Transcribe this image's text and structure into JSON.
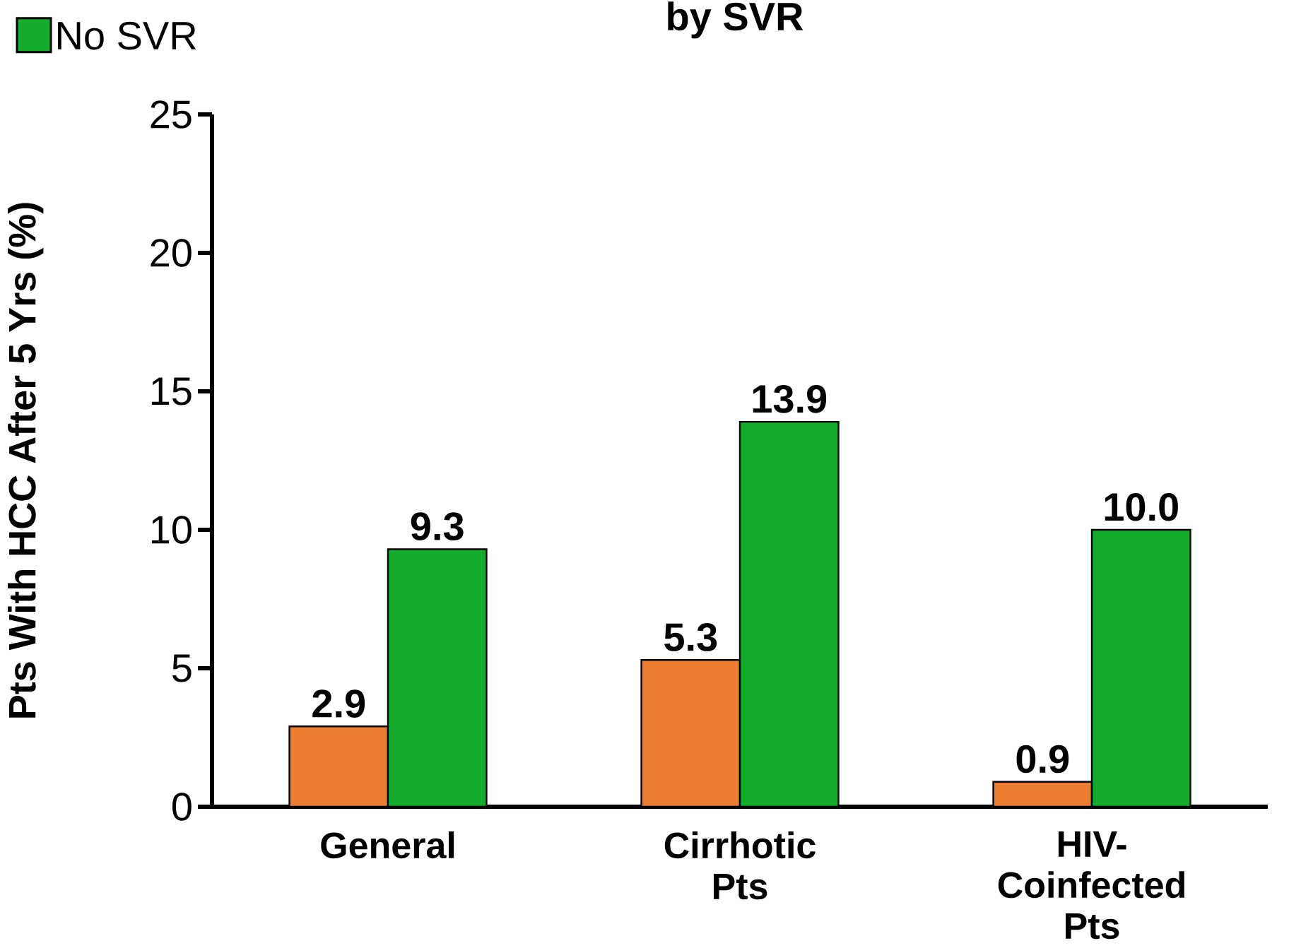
{
  "chart_data": {
    "type": "bar",
    "title": "by SVR",
    "ylabel": "Pts With HCC After 5 Yrs (%)",
    "categories": [
      "General",
      "Cirrhotic Pts",
      "HIV-Coinfected Pts"
    ],
    "series": [
      {
        "color": "#ED7D31",
        "values": [
          2.9,
          5.3,
          0.9
        ],
        "value_labels": [
          "2.9",
          "5.3",
          "0.9"
        ]
      },
      {
        "name": "No SVR",
        "color": "#13AC2C",
        "values": [
          9.3,
          13.9,
          10.0
        ],
        "value_labels": [
          "9.3",
          "13.9",
          "10.0"
        ]
      }
    ],
    "ylim": [
      0,
      25
    ],
    "yticks": [
      0,
      5,
      10,
      15,
      20,
      25
    ],
    "legend": "top left",
    "grid": false
  }
}
